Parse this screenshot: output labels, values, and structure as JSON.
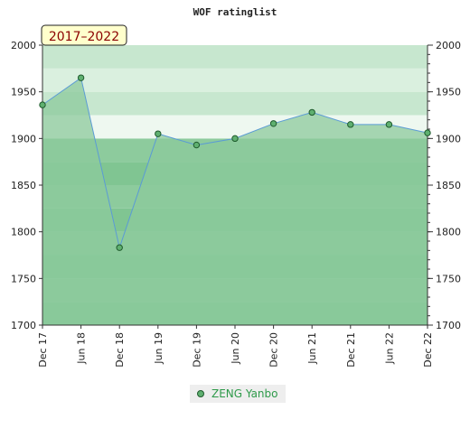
{
  "chart_data": {
    "type": "line",
    "title": "WOF ratinglist",
    "period_label": "2017–2022",
    "x": [
      "Dec 17",
      "Jun 18",
      "Dec 18",
      "Jun 19",
      "Dec 19",
      "Jun 20",
      "Dec 20",
      "Jun 21",
      "Dec 21",
      "Jun 22",
      "Dec 22"
    ],
    "series": [
      {
        "name": "ZENG Yanbo",
        "values": [
          1936,
          1965,
          1783,
          1905,
          1893,
          1900,
          1916,
          1928,
          1915,
          1915,
          1906
        ]
      }
    ],
    "ylim": [
      1700,
      2000
    ],
    "y_ticks": [
      "1700",
      "1750",
      "1800",
      "1850",
      "1900",
      "1950",
      "2000"
    ],
    "legend_position": "bottom-center",
    "grid": true,
    "colors": {
      "line": "#5b9bd5",
      "marker": "#5fb070",
      "legend_text": "#2e9a4a",
      "area_fill": "#8cca9c",
      "band_light": "#d5ecd9",
      "band_dark": "#7ec590"
    }
  }
}
